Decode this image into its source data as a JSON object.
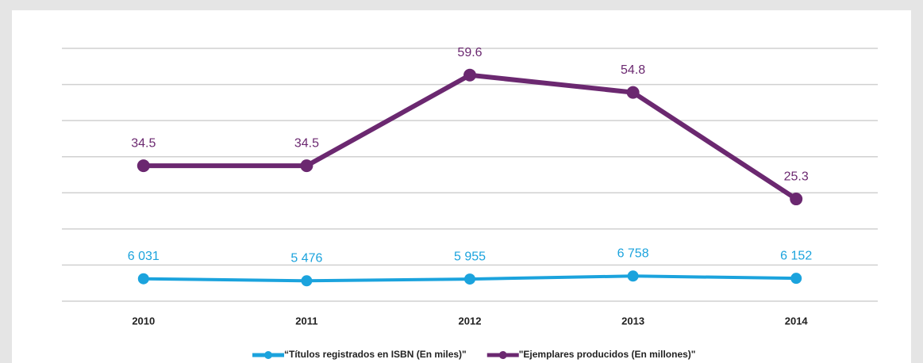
{
  "chart_data": {
    "type": "line",
    "categories": [
      "2010",
      "2011",
      "2012",
      "2013",
      "2014"
    ],
    "series": [
      {
        "name": "“Títulos registrados en ISBN (En miles)\"",
        "color": "#1ba3dd",
        "axis": "y2",
        "values": [
          6031,
          5476,
          5955,
          6758,
          6152
        ],
        "value_labels": [
          "6 031",
          "5 476",
          "5 955",
          "6 758",
          "6 152"
        ]
      },
      {
        "name": "\"Ejemplares producidos (En millones)\"",
        "color": "#6b2870",
        "values": [
          34.5,
          34.5,
          59.6,
          54.8,
          25.3
        ]
      }
    ],
    "ylim": [
      -3,
      67
    ],
    "yticks": [
      -3,
      7,
      17,
      27,
      37,
      47,
      57,
      67
    ],
    "y2lim": [
      0,
      68000
    ],
    "grid": true
  }
}
